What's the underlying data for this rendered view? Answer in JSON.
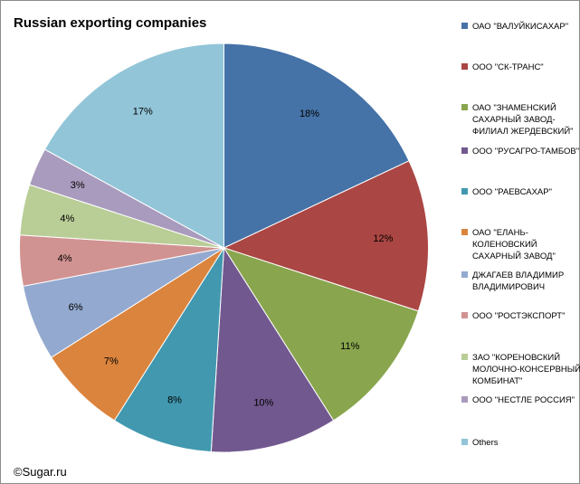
{
  "chart_data": {
    "type": "pie",
    "title": "Russian exporting companies",
    "slices": [
      {
        "label": "ОАО \"ВАЛУЙКИСАХАР\"",
        "value": 18,
        "value_label": "18%",
        "color": "#4572A7"
      },
      {
        "label": "ООО \"СК-ТРАНС\"",
        "value": 12,
        "value_label": "12%",
        "color": "#AA4643"
      },
      {
        "label": "ОАО \"ЗНАМЕНСКИЙ САХАРНЫЙ ЗАВОД-ФИЛИАЛ ЖЕРДЕВСКИЙ\"",
        "value": 11,
        "value_label": "11%",
        "color": "#89A54E"
      },
      {
        "label": "ООО \"РУСАГРО-ТАМБОВ\"",
        "value": 10,
        "value_label": "10%",
        "color": "#71588F"
      },
      {
        "label": "ООО \"РАЕВСАХАР\"",
        "value": 8,
        "value_label": "8%",
        "color": "#4198AF"
      },
      {
        "label": "ОАО \"ЕЛАНЬ-КОЛЕНОВСКИЙ САХАРНЫЙ ЗАВОД\"",
        "value": 7,
        "value_label": "7%",
        "color": "#DB843D"
      },
      {
        "label": "ДЖАГАЕВ ВЛАДИМИР ВЛАДИМИРОВИЧ",
        "value": 6,
        "value_label": "6%",
        "color": "#93A9CF"
      },
      {
        "label": "ООО \"РОСТЭКСПОРТ\"",
        "value": 4,
        "value_label": "4%",
        "color": "#D19392"
      },
      {
        "label": "ЗАО \"КОРЕНОВСКИЙ МОЛОЧНО-КОНСЕРВНЫЙ КОМБИНАТ\"",
        "value": 4,
        "value_label": "4%",
        "color": "#B9CD96"
      },
      {
        "label": "ООО \"НЕСТЛЕ РОССИЯ\"",
        "value": 3,
        "value_label": "3%",
        "color": "#A99BBD"
      },
      {
        "label": "Others",
        "value": 17,
        "value_label": "17%",
        "color": "#92C5D8"
      }
    ],
    "legend_position": "right",
    "source": "©Sugar.ru"
  }
}
